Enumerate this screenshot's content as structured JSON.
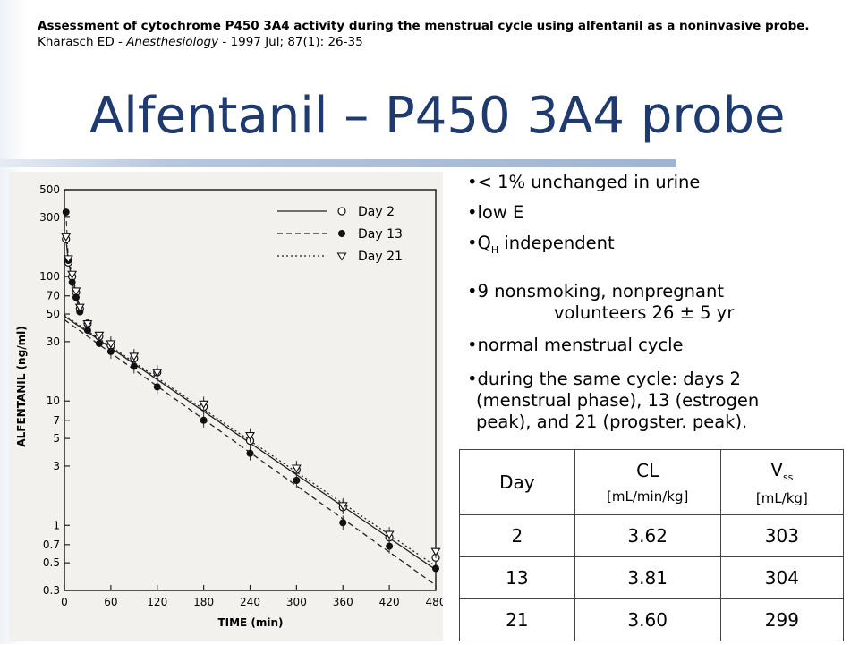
{
  "header": {
    "citation_title": "Assessment of cytochrome P450 3A4 activity during the menstrual cycle using alfentanil as a noninvasive probe.",
    "citation_authors": "Kharasch ED - ",
    "citation_journal": "Anesthesiology",
    "citation_details": " - 1997 Jul; 87(1): 26-35"
  },
  "title": "Alfentanil – P450 3A4 probe",
  "bullets": {
    "b1": "•< 1% unchanged in urine",
    "b2": "•low E",
    "b3_pre": "•Q",
    "b3_sub": "H",
    "b3_post": " independent",
    "b4_line1": "•9 nonsmoking, nonpregnant",
    "b4_line2": "volunteers 26 ± 5 yr",
    "b5": "•normal menstrual cycle",
    "b6_line1": "•during the same cycle: days 2",
    "b6_line2": "(menstrual phase), 13 (estrogen",
    "b6_line3": "peak), and 21 (progster. peak)."
  },
  "table": {
    "headers": {
      "day": "Day",
      "cl": "CL",
      "cl_unit": "[mL/min/kg]",
      "vss_pre": "V",
      "vss_sub": "ss",
      "vss_unit": "[mL/kg]"
    },
    "rows": [
      {
        "day": "2",
        "cl": "3.62",
        "vss": "303"
      },
      {
        "day": "13",
        "cl": "3.81",
        "vss": "304"
      },
      {
        "day": "21",
        "cl": "3.60",
        "vss": "299"
      }
    ]
  },
  "chart_data": {
    "type": "scatter",
    "xlabel": "TIME (min)",
    "ylabel": "ALFENTANIL (ng/ml)",
    "xlim": [
      0,
      480
    ],
    "ylim": [
      0.3,
      500
    ],
    "yscale": "log",
    "x_ticks": [
      0,
      60,
      120,
      180,
      240,
      300,
      360,
      420,
      480
    ],
    "y_ticks": [
      {
        "v": 500,
        "label": "500"
      },
      {
        "v": 300,
        "label": "300"
      },
      {
        "v": 100,
        "label": "100"
      },
      {
        "v": 70,
        "label": "70"
      },
      {
        "v": 50,
        "label": "50"
      },
      {
        "v": 30,
        "label": "30"
      },
      {
        "v": 10,
        "label": "10"
      },
      {
        "v": 7,
        "label": "7"
      },
      {
        "v": 5,
        "label": "5"
      },
      {
        "v": 3,
        "label": "3"
      },
      {
        "v": 1,
        "label": "1"
      },
      {
        "v": 0.7,
        "label": "0.7"
      },
      {
        "v": 0.5,
        "label": "0.5"
      },
      {
        "v": 0.3,
        "label": "0.3"
      }
    ],
    "legend_position": "top-right",
    "series": [
      {
        "name": "Day 2",
        "marker": "open-circle",
        "line": "solid",
        "x": [
          2,
          5,
          10,
          15,
          20,
          30,
          45,
          60,
          90,
          120,
          180,
          240,
          300,
          360,
          420,
          480
        ],
        "y": [
          200,
          130,
          100,
          75,
          55,
          42,
          33,
          28,
          22,
          17,
          9,
          4.8,
          2.8,
          1.4,
          0.8,
          0.55
        ],
        "fit_y": [
          48,
          0.44
        ]
      },
      {
        "name": "Day 13",
        "marker": "filled-circle",
        "line": "dashed",
        "x": [
          2,
          5,
          10,
          15,
          20,
          30,
          45,
          60,
          90,
          120,
          180,
          240,
          300,
          360,
          420,
          480
        ],
        "y": [
          330,
          135,
          90,
          68,
          52,
          37,
          29,
          25,
          19,
          13,
          7,
          3.8,
          2.3,
          1.05,
          0.68,
          0.45
        ],
        "fit_y": [
          45,
          0.33
        ]
      },
      {
        "name": "Day 21",
        "marker": "open-triangle",
        "line": "dotted",
        "x": [
          2,
          5,
          10,
          15,
          20,
          30,
          45,
          60,
          90,
          120,
          180,
          240,
          300,
          360,
          420,
          480
        ],
        "y": [
          210,
          140,
          105,
          77,
          57,
          42,
          34,
          29,
          23,
          17,
          9.5,
          5.3,
          2.9,
          1.45,
          0.85,
          0.62
        ],
        "fit_y": [
          49,
          0.47
        ]
      }
    ]
  }
}
